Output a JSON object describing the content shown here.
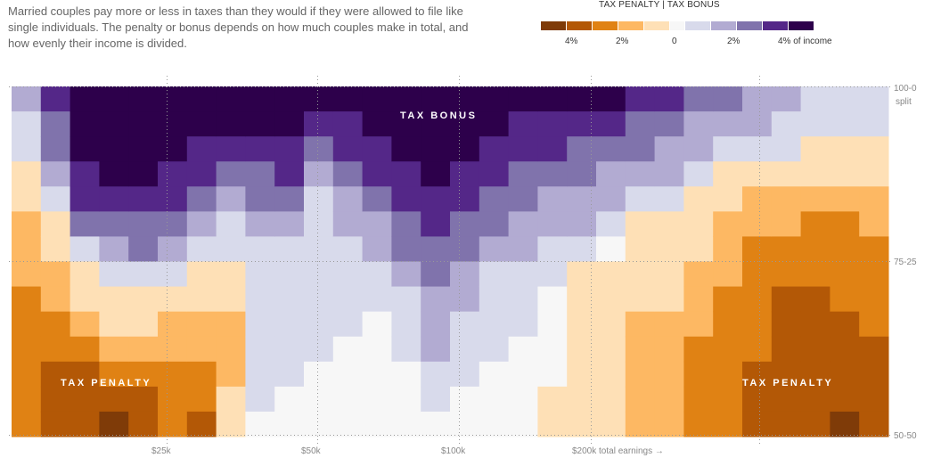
{
  "intro": "Married couples pay more or less in taxes than they would if they were allowed to file like single individuals. The penalty or bonus depends on how much couples make in total, and how evenly their income is divided.",
  "legend": {
    "title": "TAX PENALTY | TAX BONUS",
    "labels": [
      "4%",
      "2%",
      "0",
      "2%",
      "4% of income"
    ],
    "colors": [
      "#7f3b08",
      "#b35806",
      "#e08214",
      "#fdb863",
      "#fee0b6",
      "#f7f7f7",
      "#d8daeb",
      "#b2abd2",
      "#8073ac",
      "#542788",
      "#2d004b"
    ]
  },
  "chart_data": {
    "type": "heatmap",
    "xlabel": "total earnings",
    "ylabel": "split",
    "x_ticks": [
      "$25k",
      "$50k",
      "$100k",
      "$200k total earnings →"
    ],
    "y_ticks": [
      "100-0",
      "75-25",
      "50-50"
    ],
    "y_sub_label": "split",
    "value_unit": "penalty (-) / bonus (+) level, roughly % of income",
    "annotations": [
      "TAX BONUS",
      "TAX PENALTY",
      "TAX PENALTY"
    ],
    "rows_top_to_bottom": "100-0 split to 50-50 split",
    "columns": [
      [
        2,
        1,
        1,
        -1,
        -1,
        -2,
        -2,
        -2,
        -3,
        -3,
        -3,
        -3,
        -3,
        -3
      ],
      [
        4,
        3,
        3,
        2,
        1,
        -1,
        -1,
        -2,
        -2,
        -3,
        -3,
        -4,
        -4,
        -4
      ],
      [
        5,
        5,
        5,
        4,
        4,
        3,
        1,
        -1,
        -1,
        -2,
        -3,
        -4,
        -4,
        -4
      ],
      [
        5,
        5,
        5,
        5,
        4,
        3,
        2,
        1,
        -1,
        -1,
        -2,
        -3,
        -4,
        -5
      ],
      [
        5,
        5,
        5,
        5,
        4,
        3,
        3,
        1,
        -1,
        -1,
        -2,
        -3,
        -4,
        -4
      ],
      [
        5,
        5,
        5,
        4,
        4,
        3,
        2,
        1,
        -1,
        -2,
        -2,
        -3,
        -3,
        -3
      ],
      [
        5,
        5,
        4,
        4,
        3,
        2,
        1,
        -1,
        -1,
        -2,
        -2,
        -3,
        -3,
        -4
      ],
      [
        5,
        5,
        4,
        3,
        2,
        1,
        1,
        -1,
        -1,
        -2,
        -2,
        -2,
        -1,
        -1
      ],
      [
        5,
        5,
        4,
        3,
        3,
        2,
        1,
        1,
        1,
        1,
        1,
        1,
        1,
        0
      ],
      [
        5,
        5,
        4,
        4,
        3,
        2,
        1,
        1,
        1,
        1,
        1,
        1,
        0,
        0
      ],
      [
        5,
        4,
        3,
        2,
        1,
        1,
        1,
        1,
        1,
        1,
        1,
        0,
        0,
        0
      ],
      [
        5,
        4,
        4,
        3,
        2,
        2,
        1,
        1,
        1,
        1,
        0,
        0,
        0,
        0
      ],
      [
        5,
        5,
        4,
        4,
        3,
        2,
        2,
        1,
        1,
        0,
        0,
        0,
        0,
        0
      ],
      [
        5,
        5,
        5,
        4,
        4,
        3,
        3,
        2,
        1,
        1,
        1,
        0,
        0,
        0
      ],
      [
        5,
        5,
        5,
        5,
        4,
        4,
        3,
        3,
        2,
        2,
        2,
        1,
        1,
        0
      ],
      [
        5,
        5,
        5,
        4,
        4,
        3,
        3,
        2,
        2,
        1,
        1,
        1,
        0,
        0
      ],
      [
        5,
        5,
        4,
        4,
        3,
        3,
        2,
        1,
        1,
        1,
        1,
        0,
        0,
        0
      ],
      [
        5,
        4,
        4,
        3,
        3,
        2,
        2,
        1,
        1,
        1,
        0,
        0,
        0,
        0
      ],
      [
        5,
        4,
        4,
        3,
        2,
        2,
        1,
        1,
        0,
        0,
        0,
        0,
        -1,
        -1
      ],
      [
        5,
        4,
        3,
        3,
        2,
        2,
        1,
        -1,
        -1,
        -1,
        -1,
        -1,
        -1,
        -1
      ],
      [
        5,
        4,
        3,
        2,
        2,
        1,
        0,
        -1,
        -1,
        -1,
        -1,
        -1,
        -1,
        -1
      ],
      [
        4,
        3,
        3,
        2,
        1,
        -1,
        -1,
        -1,
        -1,
        -2,
        -2,
        -2,
        -2,
        -2
      ],
      [
        4,
        3,
        2,
        2,
        1,
        -1,
        -1,
        -1,
        -1,
        -2,
        -2,
        -2,
        -2,
        -2
      ],
      [
        3,
        2,
        2,
        1,
        -1,
        -1,
        -1,
        -2,
        -2,
        -2,
        -3,
        -3,
        -3,
        -3
      ],
      [
        3,
        2,
        1,
        -1,
        -1,
        -2,
        -2,
        -2,
        -3,
        -3,
        -3,
        -3,
        -3,
        -3
      ],
      [
        2,
        2,
        1,
        -1,
        -2,
        -2,
        -3,
        -3,
        -3,
        -3,
        -3,
        -4,
        -4,
        -4
      ],
      [
        2,
        1,
        1,
        -1,
        -2,
        -2,
        -3,
        -3,
        -4,
        -4,
        -4,
        -4,
        -4,
        -4
      ],
      [
        1,
        1,
        -1,
        -1,
        -2,
        -3,
        -3,
        -3,
        -4,
        -4,
        -4,
        -4,
        -4,
        -4
      ],
      [
        1,
        1,
        -1,
        -1,
        -2,
        -3,
        -3,
        -3,
        -3,
        -4,
        -4,
        -4,
        -4,
        -5
      ],
      [
        1,
        1,
        -1,
        -1,
        -2,
        -2,
        -3,
        -3,
        -3,
        -3,
        -4,
        -4,
        -4,
        -4
      ]
    ]
  }
}
